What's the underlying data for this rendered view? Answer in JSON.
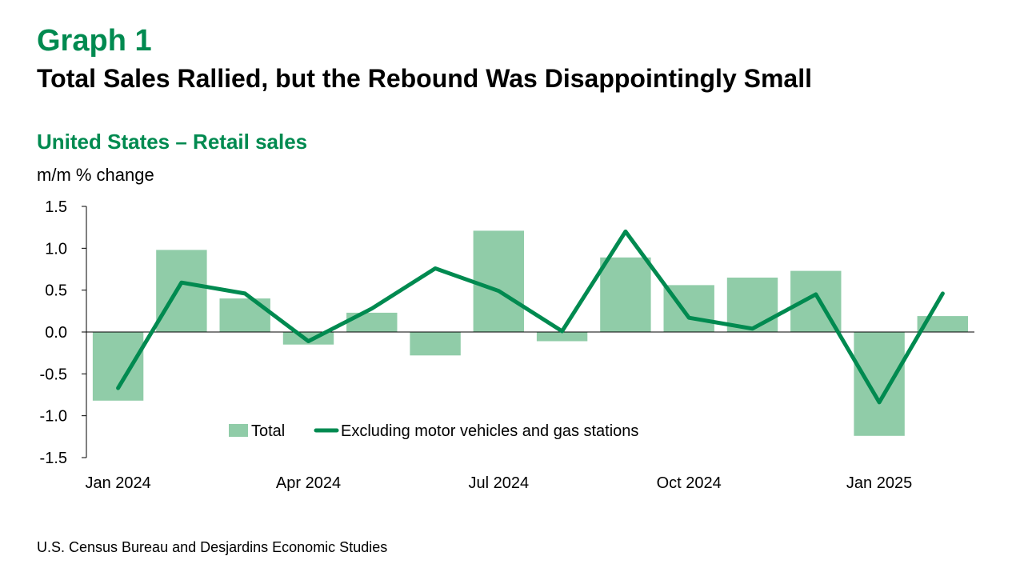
{
  "header": {
    "graph_label": "Graph 1",
    "headline": "Total Sales Rallied, but the Rebound Was Disappointingly Small"
  },
  "footer": {
    "source": "U.S. Census Bureau and Desjardins Economic Studies"
  },
  "colors": {
    "bar": "#90cca8",
    "line": "#008a50",
    "title_green": "#008a50"
  },
  "chart_data": {
    "type": "bar",
    "title": "United States – Retail sales",
    "ylabel": "m/m % change",
    "ylim": [
      -1.5,
      1.5
    ],
    "yticks": [
      "1.5",
      "1.0",
      "0.5",
      "0.0",
      "-0.5",
      "-1.0",
      "-1.5"
    ],
    "ytick_values": [
      1.5,
      1.0,
      0.5,
      0.0,
      -0.5,
      -1.0,
      -1.5
    ],
    "categories": [
      "Jan 2024",
      "Feb 2024",
      "Mar 2024",
      "Apr 2024",
      "May 2024",
      "Jun 2024",
      "Jul 2024",
      "Aug 2024",
      "Sep 2024",
      "Oct 2024",
      "Nov 2024",
      "Dec 2024",
      "Jan 2025",
      "Feb 2025"
    ],
    "x_tick_labels": [
      "Jan 2024",
      "Apr 2024",
      "Jul 2024",
      "Oct 2024",
      "Jan 2025"
    ],
    "x_tick_indices": [
      0,
      3,
      6,
      9,
      12
    ],
    "series": [
      {
        "name": "Total",
        "type": "bar",
        "values": [
          -0.82,
          0.98,
          0.4,
          -0.15,
          0.23,
          -0.28,
          1.21,
          -0.11,
          0.89,
          0.56,
          0.65,
          0.73,
          -1.24,
          0.19
        ]
      },
      {
        "name": "Excluding motor vehicles and gas stations",
        "type": "line",
        "values": [
          -0.67,
          0.59,
          0.46,
          -0.11,
          0.28,
          0.76,
          0.49,
          0.01,
          1.2,
          0.17,
          0.04,
          0.45,
          -0.84,
          0.46
        ]
      }
    ],
    "legend": {
      "position": "bottom-center",
      "entries": [
        "Total",
        "Excluding motor vehicles and gas stations"
      ]
    },
    "grid": false
  }
}
